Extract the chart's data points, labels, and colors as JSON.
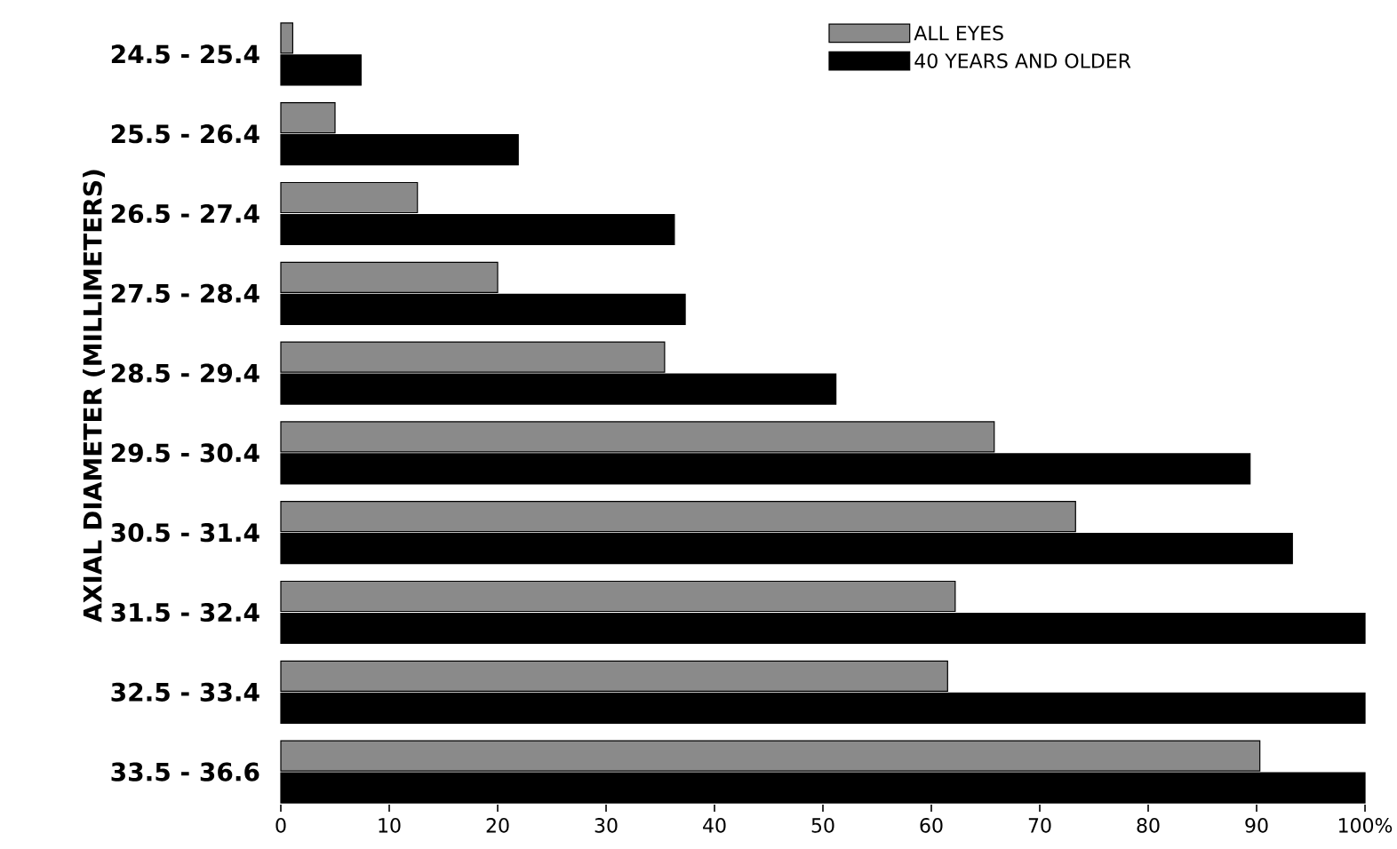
{
  "chart_data": {
    "type": "bar",
    "orientation": "horizontal",
    "ylabel": "AXIAL DIAMETER (MILLIMETERS)",
    "categories": [
      "24.5 - 25.4",
      "25.5 - 26.4",
      "26.5 - 27.4",
      "27.5 - 28.4",
      "28.5 - 29.4",
      "29.5 - 30.4",
      "30.5 - 31.4",
      "31.5 - 32.4",
      "32.5 - 33.4",
      "33.5 - 36.6"
    ],
    "series": [
      {
        "name": "ALL EYES",
        "color": "#8a8a8a",
        "values": [
          1.1,
          5,
          12.6,
          20,
          35.4,
          65.8,
          73.3,
          62.2,
          61.5,
          90.3
        ]
      },
      {
        "name": "40 YEARS AND OLDER",
        "color": "#000000",
        "values": [
          7.4,
          21.9,
          36.3,
          37.3,
          51.2,
          89.4,
          93.3,
          100,
          100,
          100
        ]
      }
    ],
    "xlim": [
      0,
      100
    ],
    "xticks": [
      0,
      10,
      20,
      30,
      40,
      50,
      60,
      70,
      80,
      90,
      {
        "value": 100,
        "label": "100%"
      }
    ],
    "legend": "top right",
    "grid": false
  }
}
